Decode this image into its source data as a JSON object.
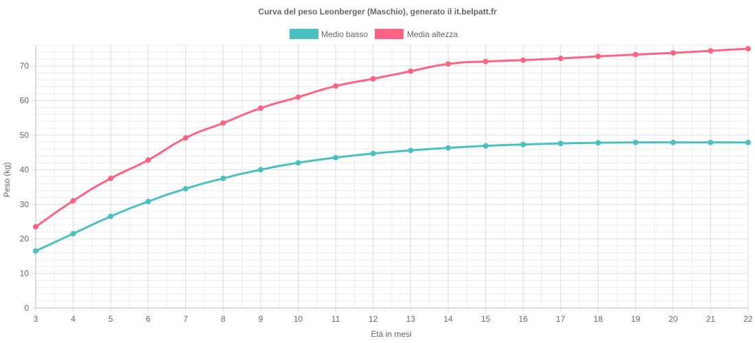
{
  "chart_data": {
    "type": "line",
    "title": "Curva del peso Leonberger (Maschio), generato il it.belpatt.fr",
    "xlabel": "Età in mesi",
    "ylabel": "Peso (kg)",
    "categories": [
      3,
      4,
      5,
      6,
      7,
      8,
      9,
      10,
      11,
      12,
      13,
      14,
      15,
      16,
      17,
      18,
      19,
      20,
      21,
      22
    ],
    "ylim": [
      0,
      76
    ],
    "yticks": [
      0,
      10,
      20,
      30,
      40,
      50,
      60,
      70
    ],
    "grid": true,
    "legend_position": "top-center",
    "series": [
      {
        "name": "Medio basso",
        "color": "#4bc0c0",
        "values": [
          16.5,
          21.5,
          26.5,
          30.8,
          34.5,
          37.5,
          40.0,
          42.0,
          43.5,
          44.7,
          45.6,
          46.3,
          46.9,
          47.3,
          47.6,
          47.8,
          47.9,
          47.9,
          47.9,
          47.9
        ]
      },
      {
        "name": "Media altezza",
        "color": "#ff6384",
        "values": [
          23.5,
          31.0,
          37.5,
          42.8,
          49.2,
          53.5,
          57.8,
          61.0,
          64.2,
          66.3,
          68.5,
          70.6,
          71.3,
          71.7,
          72.2,
          72.8,
          73.3,
          73.8,
          74.4,
          75.0
        ]
      }
    ]
  }
}
